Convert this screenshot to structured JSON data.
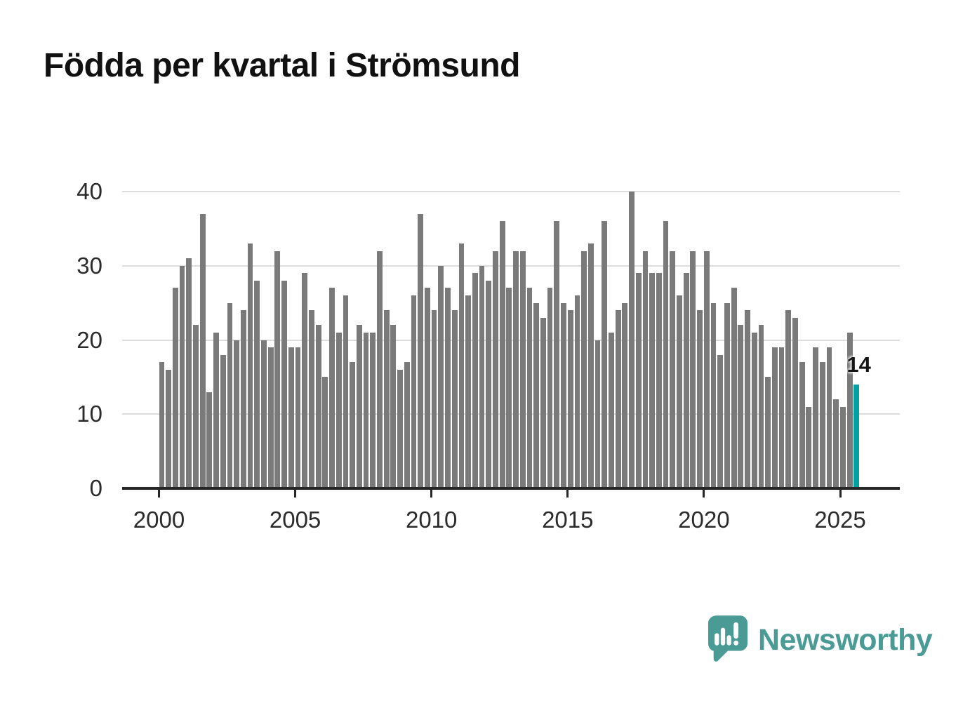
{
  "title": "Födda per kvartal i Strömsund",
  "chart_data": {
    "type": "bar",
    "title": "Födda per kvartal i Strömsund",
    "x_start": "2000-Q1",
    "x_end": "2025-Q3",
    "frequency": "quarterly",
    "values": [
      17,
      16,
      27,
      30,
      31,
      22,
      37,
      13,
      21,
      18,
      25,
      20,
      24,
      33,
      28,
      20,
      19,
      32,
      28,
      19,
      19,
      29,
      24,
      22,
      15,
      27,
      21,
      26,
      17,
      22,
      21,
      21,
      32,
      24,
      22,
      16,
      17,
      26,
      37,
      27,
      24,
      30,
      27,
      24,
      33,
      26,
      29,
      30,
      28,
      32,
      36,
      27,
      32,
      32,
      27,
      25,
      23,
      27,
      36,
      25,
      24,
      26,
      32,
      33,
      20,
      36,
      21,
      24,
      25,
      40,
      29,
      32,
      29,
      29,
      36,
      32,
      26,
      29,
      32,
      24,
      32,
      25,
      18,
      25,
      27,
      22,
      24,
      21,
      22,
      15,
      19,
      19,
      24,
      23,
      17,
      11,
      19,
      17,
      19,
      12,
      11,
      21,
      14
    ],
    "x_tick_labels": [
      "2000",
      "2005",
      "2010",
      "2015",
      "2020",
      "2025"
    ],
    "x_tick_quarter_indices": [
      0,
      20,
      40,
      60,
      80,
      100
    ],
    "y_tick_labels": [
      "0",
      "10",
      "20",
      "30",
      "40"
    ],
    "y_ticks": [
      0,
      10,
      20,
      30,
      40
    ],
    "ylim": [
      0,
      40
    ],
    "grid": "horizontal",
    "legend": "none",
    "bar_color": "#7a7a7a",
    "highlight_color": "#00a1a2",
    "highlight_index": 102,
    "highlight_value_label": "14"
  },
  "annotation": {
    "last_value_label": "14"
  },
  "branding": {
    "wordmark": "Newsworthy",
    "brand_color": "#4a9b96",
    "logo_icon": "speech-bubble-bar-chart-icon"
  }
}
